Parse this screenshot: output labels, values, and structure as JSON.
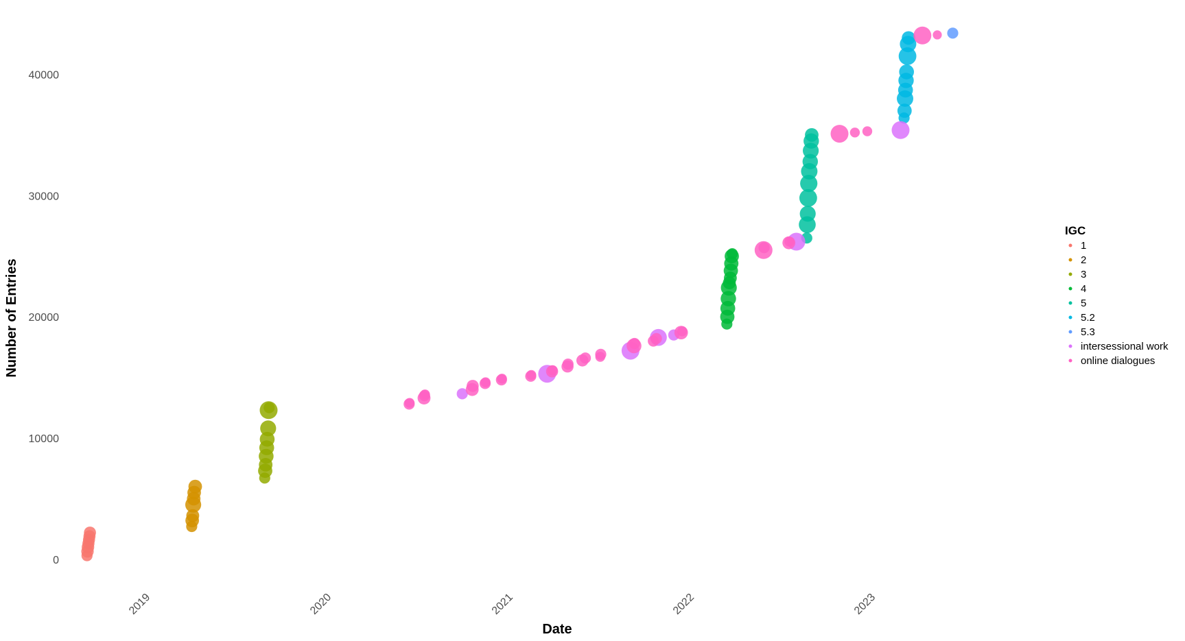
{
  "chart_data": {
    "type": "scatter",
    "xlabel": "Date",
    "ylabel": "Number of Entries",
    "x_ticks": [
      "2019",
      "2020",
      "2021",
      "2022",
      "2023"
    ],
    "y_ticks": [
      0,
      10000,
      20000,
      30000,
      40000
    ],
    "xlim": [
      "2018-07-20",
      "2023-11-20"
    ],
    "ylim": [
      -2500,
      45000
    ],
    "grid": false,
    "legend": {
      "title": "IGC",
      "position": "right"
    },
    "series": [
      {
        "name": "1",
        "color": "#F8766D",
        "points": [
          {
            "x": "2018-08-26",
            "y": 300
          },
          {
            "x": "2018-08-27",
            "y": 650
          },
          {
            "x": "2018-08-28",
            "y": 1000
          },
          {
            "x": "2018-08-29",
            "y": 1300
          },
          {
            "x": "2018-08-30",
            "y": 1600
          },
          {
            "x": "2018-08-31",
            "y": 1900
          },
          {
            "x": "2018-09-01",
            "y": 2200
          }
        ]
      },
      {
        "name": "2",
        "color": "#D39200",
        "points": [
          {
            "x": "2019-03-25",
            "y": 2700
          },
          {
            "x": "2019-03-26",
            "y": 3200
          },
          {
            "x": "2019-03-27",
            "y": 3600
          },
          {
            "x": "2019-03-28",
            "y": 4500
          },
          {
            "x": "2019-03-29",
            "y": 5000
          },
          {
            "x": "2019-03-30",
            "y": 5500
          },
          {
            "x": "2019-04-01",
            "y": 6000
          }
        ]
      },
      {
        "name": "3",
        "color": "#93AA00",
        "points": [
          {
            "x": "2019-08-19",
            "y": 6700
          },
          {
            "x": "2019-08-20",
            "y": 7300
          },
          {
            "x": "2019-08-21",
            "y": 7800
          },
          {
            "x": "2019-08-22",
            "y": 8500
          },
          {
            "x": "2019-08-23",
            "y": 9200
          },
          {
            "x": "2019-08-24",
            "y": 9900
          },
          {
            "x": "2019-08-26",
            "y": 10800
          },
          {
            "x": "2019-08-27",
            "y": 12300
          },
          {
            "x": "2019-08-28",
            "y": 12500
          }
        ]
      },
      {
        "name": "4",
        "color": "#00BA38",
        "points": [
          {
            "x": "2022-03-07",
            "y": 19400
          },
          {
            "x": "2022-03-08",
            "y": 20000
          },
          {
            "x": "2022-03-09",
            "y": 20700
          },
          {
            "x": "2022-03-10",
            "y": 21500
          },
          {
            "x": "2022-03-11",
            "y": 22400
          },
          {
            "x": "2022-03-12",
            "y": 22800
          },
          {
            "x": "2022-03-14",
            "y": 23200
          },
          {
            "x": "2022-03-15",
            "y": 23800
          },
          {
            "x": "2022-03-16",
            "y": 24400
          },
          {
            "x": "2022-03-17",
            "y": 25000
          },
          {
            "x": "2022-03-18",
            "y": 25200
          }
        ]
      },
      {
        "name": "5",
        "color": "#00C19F",
        "points": [
          {
            "x": "2022-08-15",
            "y": 26500
          },
          {
            "x": "2022-08-16",
            "y": 27600
          },
          {
            "x": "2022-08-17",
            "y": 28500
          },
          {
            "x": "2022-08-18",
            "y": 29800
          },
          {
            "x": "2022-08-19",
            "y": 31000
          },
          {
            "x": "2022-08-20",
            "y": 32000
          },
          {
            "x": "2022-08-22",
            "y": 32800
          },
          {
            "x": "2022-08-23",
            "y": 33700
          },
          {
            "x": "2022-08-24",
            "y": 34500
          },
          {
            "x": "2022-08-25",
            "y": 35000
          }
        ]
      },
      {
        "name": "5.2",
        "color": "#00B9E3",
        "points": [
          {
            "x": "2023-02-27",
            "y": 36400
          },
          {
            "x": "2023-02-28",
            "y": 37000
          },
          {
            "x": "2023-03-01",
            "y": 38000
          },
          {
            "x": "2023-03-02",
            "y": 38700
          },
          {
            "x": "2023-03-03",
            "y": 39500
          },
          {
            "x": "2023-03-04",
            "y": 40200
          },
          {
            "x": "2023-03-06",
            "y": 41500
          },
          {
            "x": "2023-03-07",
            "y": 42500
          },
          {
            "x": "2023-03-08",
            "y": 43000
          }
        ]
      },
      {
        "name": "5.3",
        "color": "#619CFF",
        "points": [
          {
            "x": "2023-06-05",
            "y": 43400
          }
        ]
      },
      {
        "name": "intersessional work",
        "color": "#DB72FB",
        "points": [
          {
            "x": "2020-09-20",
            "y": 13650
          },
          {
            "x": "2021-03-10",
            "y": 15300
          },
          {
            "x": "2021-08-25",
            "y": 17200
          },
          {
            "x": "2021-10-20",
            "y": 18300
          },
          {
            "x": "2021-11-20",
            "y": 18500
          },
          {
            "x": "2022-07-25",
            "y": 26200
          },
          {
            "x": "2023-02-20",
            "y": 35400
          }
        ]
      },
      {
        "name": "online dialogues",
        "color": "#FF61C3",
        "points": [
          {
            "x": "2020-06-05",
            "y": 12800
          },
          {
            "x": "2020-06-06",
            "y": 12900
          },
          {
            "x": "2020-07-05",
            "y": 13300
          },
          {
            "x": "2020-07-06",
            "y": 13500
          },
          {
            "x": "2020-07-07",
            "y": 13600
          },
          {
            "x": "2020-10-10",
            "y": 14000
          },
          {
            "x": "2020-10-11",
            "y": 14300
          },
          {
            "x": "2020-11-05",
            "y": 14500
          },
          {
            "x": "2020-11-06",
            "y": 14600
          },
          {
            "x": "2020-12-08",
            "y": 14800
          },
          {
            "x": "2020-12-09",
            "y": 14900
          },
          {
            "x": "2021-02-05",
            "y": 15100
          },
          {
            "x": "2021-02-06",
            "y": 15200
          },
          {
            "x": "2021-03-20",
            "y": 15500
          },
          {
            "x": "2021-03-21",
            "y": 15600
          },
          {
            "x": "2021-04-20",
            "y": 15900
          },
          {
            "x": "2021-04-21",
            "y": 16100
          },
          {
            "x": "2021-05-20",
            "y": 16400
          },
          {
            "x": "2021-05-26",
            "y": 16600
          },
          {
            "x": "2021-06-25",
            "y": 16700
          },
          {
            "x": "2021-06-26",
            "y": 16900
          },
          {
            "x": "2021-09-01",
            "y": 17600
          },
          {
            "x": "2021-09-02",
            "y": 17800
          },
          {
            "x": "2021-10-10",
            "y": 18000
          },
          {
            "x": "2021-10-16",
            "y": 18200
          },
          {
            "x": "2021-12-05",
            "y": 18700
          },
          {
            "x": "2021-12-07",
            "y": 18800
          },
          {
            "x": "2022-05-20",
            "y": 25500
          },
          {
            "x": "2022-05-21",
            "y": 25700
          },
          {
            "x": "2022-07-10",
            "y": 26100
          },
          {
            "x": "2022-07-11",
            "y": 26200
          },
          {
            "x": "2022-10-20",
            "y": 35100
          },
          {
            "x": "2022-11-20",
            "y": 35200
          },
          {
            "x": "2022-12-15",
            "y": 35300
          },
          {
            "x": "2023-04-05",
            "y": 43200
          },
          {
            "x": "2023-05-05",
            "y": 43250
          }
        ]
      }
    ]
  }
}
